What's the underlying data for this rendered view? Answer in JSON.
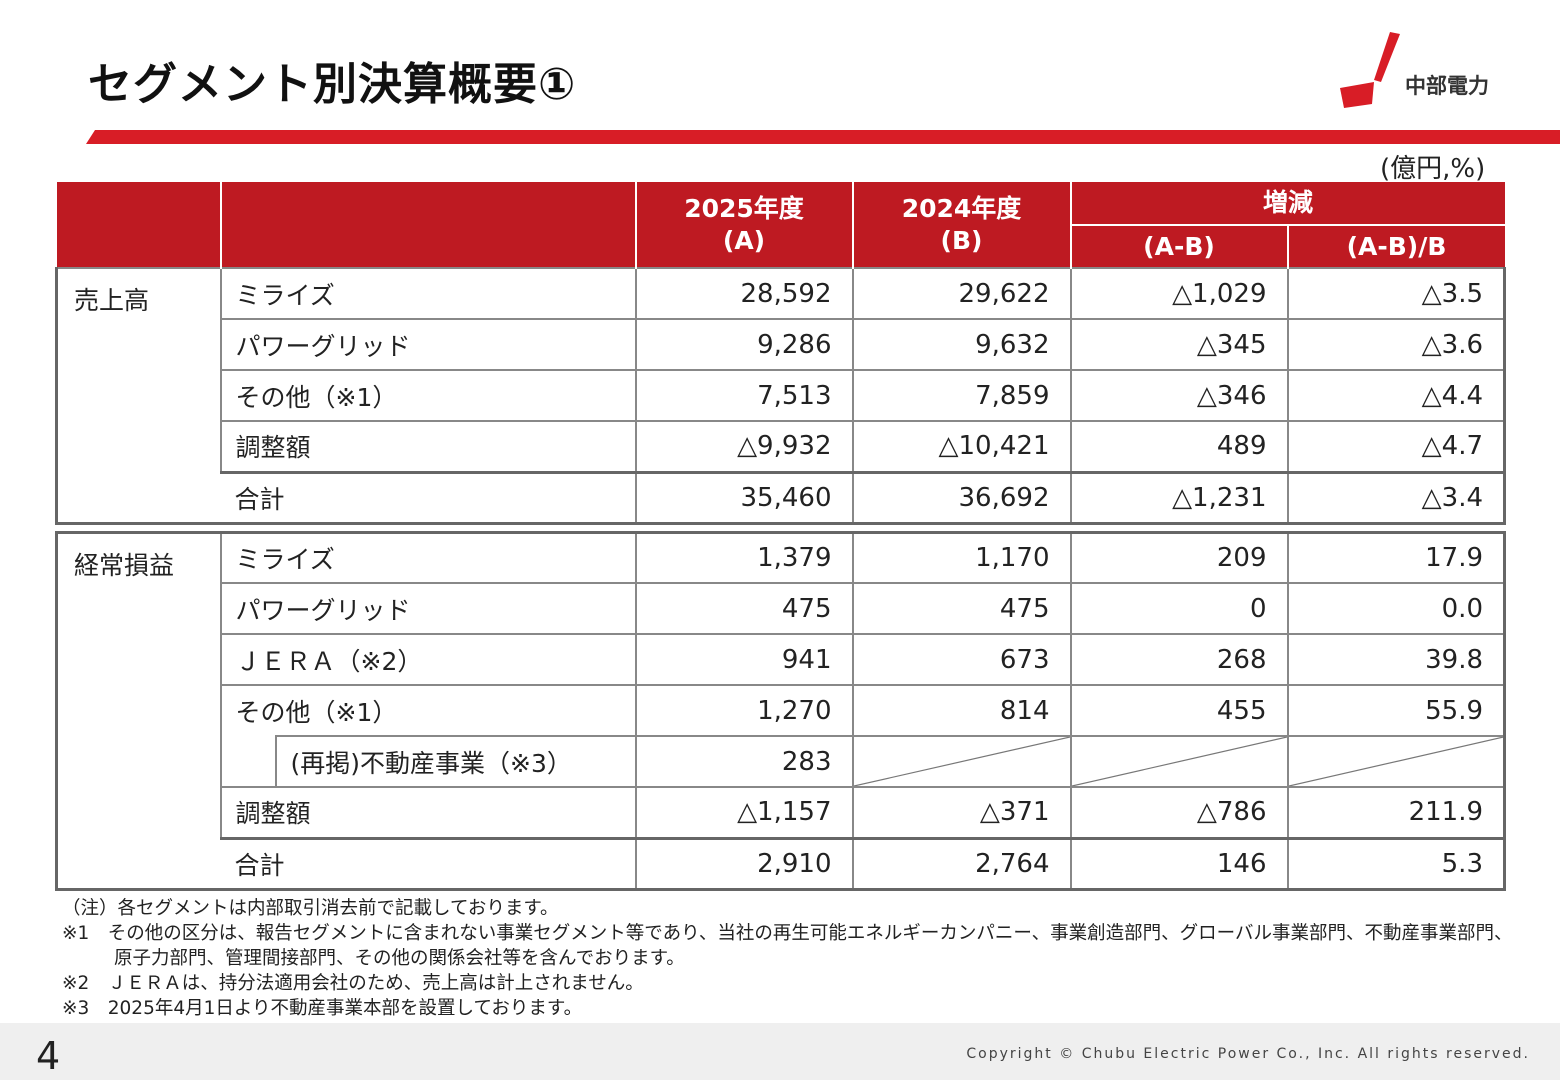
{
  "title": "セグメント別決算概要①",
  "logo": {
    "text": "中部電力",
    "colors": {
      "red": "#d81d26"
    }
  },
  "unit": "(億円,%)",
  "header": {
    "col_a_line1": "2025年度",
    "col_a_line2": "(A)",
    "col_b_line1": "2024年度",
    "col_b_line2": "(B)",
    "change": "増減",
    "diff": "(A-B)",
    "ratio": "(A-B)/B"
  },
  "sales": {
    "category": "売上高",
    "rows": [
      {
        "label": "ミライズ",
        "a": "28,592",
        "b": "29,622",
        "diff": "△1,029",
        "ratio": "△3.5"
      },
      {
        "label": "パワーグリッド",
        "a": "9,286",
        "b": "9,632",
        "diff": "△345",
        "ratio": "△3.6"
      },
      {
        "label": "その他（※1）",
        "a": "7,513",
        "b": "7,859",
        "diff": "△346",
        "ratio": "△4.4"
      },
      {
        "label": "調整額",
        "a": "△9,932",
        "b": "△10,421",
        "diff": "489",
        "ratio": "△4.7"
      },
      {
        "label": "合計",
        "a": "35,460",
        "b": "36,692",
        "diff": "△1,231",
        "ratio": "△3.4"
      }
    ]
  },
  "ordinary": {
    "category": "経常損益",
    "rows": [
      {
        "label": "ミライズ",
        "a": "1,379",
        "b": "1,170",
        "diff": "209",
        "ratio": "17.9"
      },
      {
        "label": "パワーグリッド",
        "a": "475",
        "b": "475",
        "diff": "0",
        "ratio": "0.0"
      },
      {
        "label": "ＪＥＲＡ（※2）",
        "a": "941",
        "b": "673",
        "diff": "268",
        "ratio": "39.8"
      },
      {
        "label": "その他（※1）",
        "a": "1,270",
        "b": "814",
        "diff": "455",
        "ratio": "55.9"
      },
      {
        "label": "(再掲)不動産事業（※3）",
        "a": "283"
      },
      {
        "label": "調整額",
        "a": "△1,157",
        "b": "△371",
        "diff": "△786",
        "ratio": "211.9"
      },
      {
        "label": "合計",
        "a": "2,910",
        "b": "2,764",
        "diff": "146",
        "ratio": "5.3"
      }
    ]
  },
  "notes": {
    "n0": "（注）各セグメントは内部取引消去前で記載しております。",
    "n1a": "※1　その他の区分は、報告セグメントに含まれない事業セグメント等であり、当社の再生可能エネルギーカンパニー、事業創造部門、グローバル事業部門、不動産事業部門、",
    "n1b": "原子力部門、管理間接部門、その他の関係会社等を含んでおります。",
    "n2": "※2　ＪＥＲＡは、持分法適用会社のため、売上高は計上されません。",
    "n3": "※3　2025年4月1日より不動産事業本部を設置しております。"
  },
  "page_number": "4",
  "copyright": "Copyright © Chubu Electric Power Co., Inc. All rights reserved."
}
